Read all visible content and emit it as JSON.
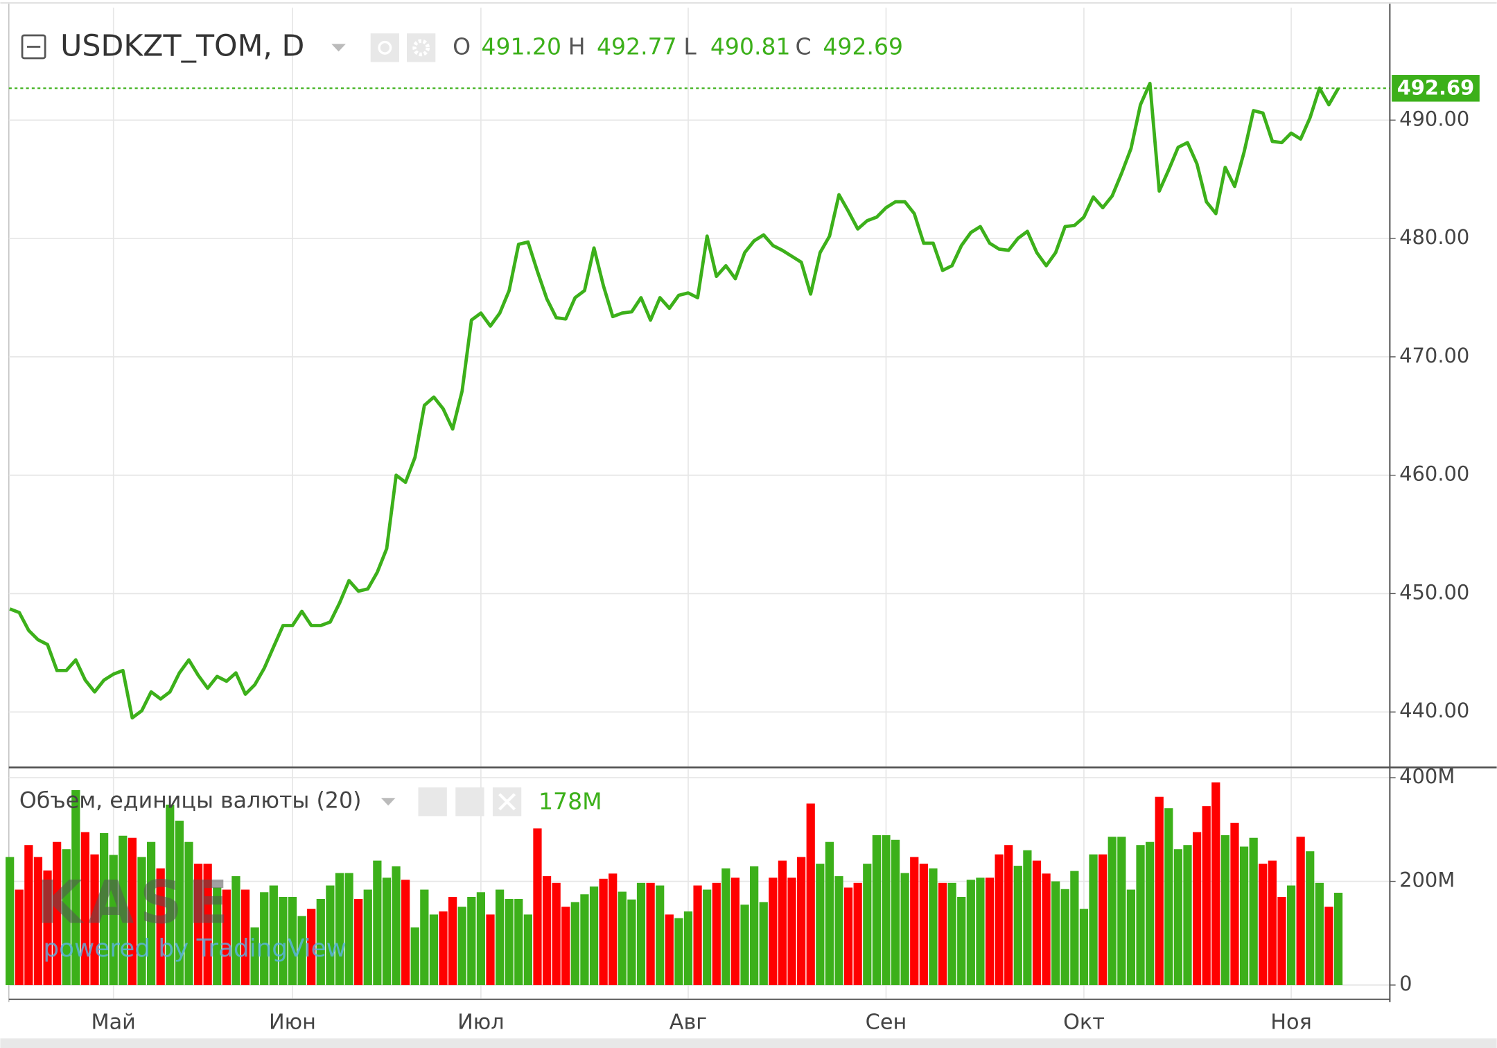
{
  "chart_data": [
    {
      "type": "line",
      "title": "USDKZT_TOM, D",
      "ohlc": [
        {
          "label": "O",
          "value": "491.20"
        },
        {
          "label": "H",
          "value": "492.77"
        },
        {
          "label": "L",
          "value": "490.81"
        },
        {
          "label": "C",
          "value": "492.69"
        }
      ],
      "last_price": {
        "value": 492.69,
        "label": "492.69"
      },
      "color": "#3cb01a",
      "grid": true,
      "ylim": [
        435.4,
        499.5
      ],
      "yticks": [
        {
          "value": 440,
          "label": "440.00"
        },
        {
          "value": 450,
          "label": "450.00"
        },
        {
          "value": 460,
          "label": "460.00"
        },
        {
          "value": 470,
          "label": "470.00"
        },
        {
          "value": 480,
          "label": "480.00"
        },
        {
          "value": 490,
          "label": "490.00"
        }
      ],
      "categories": [
        null,
        null,
        null,
        null,
        null,
        null,
        null,
        null,
        null,
        null,
        null,
        "Май",
        null,
        null,
        null,
        null,
        null,
        null,
        null,
        null,
        null,
        null,
        null,
        null,
        null,
        null,
        null,
        null,
        null,
        null,
        "Июн",
        null,
        null,
        null,
        null,
        null,
        null,
        null,
        null,
        null,
        null,
        null,
        null,
        null,
        null,
        null,
        null,
        null,
        null,
        null,
        "Июл",
        null,
        null,
        null,
        null,
        null,
        null,
        null,
        null,
        null,
        null,
        null,
        null,
        null,
        null,
        null,
        null,
        null,
        null,
        null,
        null,
        null,
        "Авг",
        null,
        null,
        null,
        null,
        null,
        null,
        null,
        null,
        null,
        null,
        null,
        null,
        null,
        null,
        null,
        null,
        null,
        null,
        null,
        null,
        "Сен",
        null,
        null,
        null,
        null,
        null,
        null,
        null,
        null,
        null,
        null,
        null,
        null,
        null,
        null,
        null,
        null,
        null,
        null,
        null,
        null,
        "Окт",
        null,
        null,
        null,
        null,
        null,
        null,
        null,
        null,
        null,
        null,
        null,
        null,
        null,
        null,
        null,
        null,
        null,
        null,
        null,
        null,
        null,
        "Ноя",
        null,
        null,
        null,
        null,
        null
      ],
      "values": [
        448.7,
        448.4,
        446.9,
        446.1,
        445.7,
        443.5,
        443.5,
        444.4,
        442.7,
        441.7,
        442.7,
        443.2,
        443.5,
        439.5,
        440.1,
        441.7,
        441.1,
        441.7,
        443.3,
        444.4,
        443.1,
        442.0,
        443.0,
        442.6,
        443.3,
        441.5,
        442.3,
        443.7,
        445.5,
        447.3,
        447.3,
        448.5,
        447.3,
        447.3,
        447.6,
        449.2,
        451.1,
        450.2,
        450.4,
        451.8,
        453.8,
        460.0,
        459.4,
        461.5,
        465.9,
        466.6,
        465.6,
        463.9,
        467.1,
        473.1,
        473.7,
        472.6,
        473.7,
        475.6,
        479.5,
        479.7,
        477.2,
        474.9,
        473.3,
        473.2,
        475.0,
        475.6,
        479.2,
        476.0,
        473.4,
        473.7,
        473.8,
        475.0,
        473.1,
        475.0,
        474.1,
        475.2,
        475.4,
        475.0,
        480.2,
        476.8,
        477.7,
        476.6,
        478.8,
        479.8,
        480.3,
        479.4,
        479.0,
        478.5,
        478.0,
        475.3,
        478.8,
        480.2,
        483.7,
        482.3,
        480.8,
        481.5,
        481.8,
        482.6,
        483.1,
        483.1,
        482.1,
        479.6,
        479.6,
        477.3,
        477.7,
        479.4,
        480.5,
        481.0,
        479.6,
        479.1,
        479.0,
        480.0,
        480.6,
        478.8,
        477.7,
        478.8,
        481.0,
        481.1,
        481.8,
        483.5,
        482.6,
        483.6,
        485.5,
        487.6,
        491.3,
        493.1,
        484.0,
        485.8,
        487.7,
        488.1,
        486.3,
        483.1,
        482.1,
        486.0,
        484.4,
        487.3,
        490.8,
        490.6,
        488.2,
        488.1,
        488.9,
        488.4,
        490.2,
        492.7,
        491.3,
        492.69
      ]
    },
    {
      "type": "bar",
      "title": "Объем, единицы валюты (20)",
      "legend_value": "178M",
      "watermark": [
        "KASE",
        "powered by TradingView"
      ],
      "ylim": [
        0,
        418
      ],
      "yticks": [
        0,
        {
          "value": 200,
          "label": "200M"
        },
        {
          "value": 400,
          "label": "400M"
        }
      ],
      "values": [
        247,
        184,
        270,
        247,
        221,
        276,
        262,
        376,
        295,
        252,
        293,
        251,
        288,
        284,
        247,
        276,
        225,
        348,
        317,
        276,
        234,
        234,
        188,
        184,
        210,
        184,
        111,
        179,
        192,
        170,
        170,
        133,
        147,
        166,
        192,
        216,
        216,
        166,
        184,
        240,
        207,
        229,
        203,
        111,
        184,
        136,
        142,
        170,
        151,
        170,
        179,
        136,
        184,
        166,
        166,
        136,
        302,
        210,
        197,
        151,
        160,
        175,
        190,
        205,
        215,
        180,
        165,
        197,
        197,
        192,
        136,
        129,
        142,
        192,
        184,
        197,
        225,
        207,
        155,
        229,
        160,
        207,
        240,
        207,
        247,
        350,
        234,
        276,
        210,
        188,
        197,
        234,
        289,
        289,
        280,
        216,
        247,
        234,
        225,
        197,
        197,
        170,
        203,
        207,
        207,
        252,
        270,
        230,
        260,
        240,
        215,
        200,
        185,
        220,
        147,
        252,
        252,
        286,
        286,
        184,
        270,
        276,
        363,
        341,
        262,
        270,
        295,
        345,
        391,
        289,
        313,
        267,
        284,
        234,
        240,
        170,
        192,
        286,
        258,
        197,
        151,
        178
      ],
      "colors": [
        "#3cb01a",
        "#ff0000",
        "#ff0000",
        "#ff0000",
        "#ff0000",
        "#ff0000",
        "#3cb01a",
        "#3cb01a",
        "#ff0000",
        "#ff0000",
        "#3cb01a",
        "#3cb01a",
        "#3cb01a",
        "#ff0000",
        "#3cb01a",
        "#3cb01a",
        "#ff0000",
        "#3cb01a",
        "#3cb01a",
        "#3cb01a",
        "#ff0000",
        "#ff0000",
        "#3cb01a",
        "#ff0000",
        "#3cb01a",
        "#ff0000",
        "#3cb01a",
        "#3cb01a",
        "#3cb01a",
        "#3cb01a",
        "#3cb01a",
        "#3cb01a",
        "#ff0000",
        "#3cb01a",
        "#3cb01a",
        "#3cb01a",
        "#3cb01a",
        "#ff0000",
        "#3cb01a",
        "#3cb01a",
        "#3cb01a",
        "#3cb01a",
        "#ff0000",
        "#3cb01a",
        "#3cb01a",
        "#3cb01a",
        "#ff0000",
        "#ff0000",
        "#3cb01a",
        "#3cb01a",
        "#3cb01a",
        "#ff0000",
        "#3cb01a",
        "#3cb01a",
        "#3cb01a",
        "#3cb01a",
        "#ff0000",
        "#ff0000",
        "#ff0000",
        "#ff0000",
        "#3cb01a",
        "#3cb01a",
        "#3cb01a",
        "#ff0000",
        "#ff0000",
        "#3cb01a",
        "#3cb01a",
        "#3cb01a",
        "#ff0000",
        "#3cb01a",
        "#ff0000",
        "#3cb01a",
        "#3cb01a",
        "#ff0000",
        "#3cb01a",
        "#ff0000",
        "#3cb01a",
        "#ff0000",
        "#3cb01a",
        "#3cb01a",
        "#3cb01a",
        "#ff0000",
        "#ff0000",
        "#ff0000",
        "#ff0000",
        "#ff0000",
        "#3cb01a",
        "#3cb01a",
        "#3cb01a",
        "#ff0000",
        "#ff0000",
        "#3cb01a",
        "#3cb01a",
        "#3cb01a",
        "#3cb01a",
        "#3cb01a",
        "#ff0000",
        "#ff0000",
        "#3cb01a",
        "#ff0000",
        "#3cb01a",
        "#3cb01a",
        "#3cb01a",
        "#3cb01a",
        "#ff0000",
        "#ff0000",
        "#ff0000",
        "#3cb01a",
        "#3cb01a",
        "#ff0000",
        "#ff0000",
        "#3cb01a",
        "#3cb01a",
        "#3cb01a",
        "#3cb01a",
        "#3cb01a",
        "#ff0000",
        "#3cb01a",
        "#3cb01a",
        "#3cb01a",
        "#3cb01a",
        "#3cb01a",
        "#ff0000",
        "#3cb01a",
        "#3cb01a",
        "#3cb01a",
        "#ff0000",
        "#ff0000",
        "#ff0000",
        "#3cb01a",
        "#ff0000",
        "#3cb01a",
        "#3cb01a",
        "#ff0000",
        "#ff0000",
        "#ff0000",
        "#3cb01a",
        "#ff0000",
        "#3cb01a",
        "#3cb01a",
        "#ff0000",
        "#3cb01a"
      ]
    }
  ]
}
